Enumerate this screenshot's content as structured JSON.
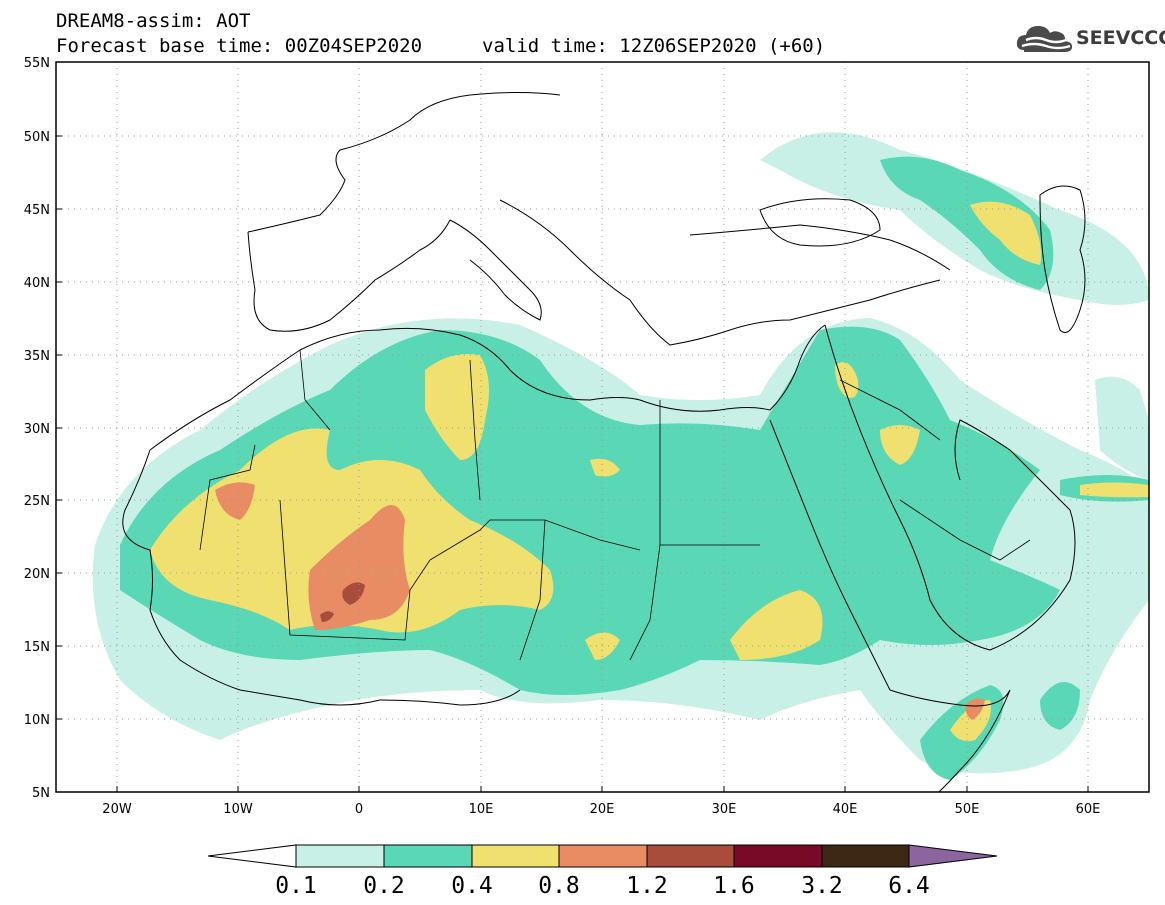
{
  "header": {
    "title": "DREAM8-assim: AOT",
    "base_time": "Forecast base time: 00Z04SEP2020",
    "valid_time": "valid time: 12Z06SEP2020 (+60)"
  },
  "logo": {
    "text": "SEEVCCC",
    "icon": "cloud-icon"
  },
  "map": {
    "lon_range": [
      -25,
      65
    ],
    "lat_range": [
      5,
      55
    ],
    "lat_ticks": [
      "55N",
      "50N",
      "45N",
      "40N",
      "35N",
      "30N",
      "25N",
      "20N",
      "15N",
      "10N",
      "5N"
    ],
    "lon_ticks": [
      "20W",
      "10W",
      "0",
      "10E",
      "20E",
      "30E",
      "40E",
      "50E",
      "60E"
    ],
    "grid": "dotted"
  },
  "colorbar": {
    "levels": [
      "0.1",
      "0.2",
      "0.4",
      "0.8",
      "1.2",
      "1.6",
      "3.2",
      "6.4"
    ],
    "colors": [
      "#ffffff",
      "#c8f0e6",
      "#5ad7b4",
      "#f0e070",
      "#e88c64",
      "#a84c3c",
      "#780a28",
      "#3c2814",
      "#8c64a0"
    ]
  }
}
